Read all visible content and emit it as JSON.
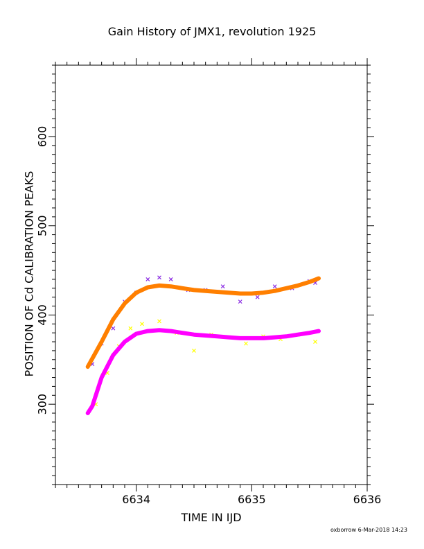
{
  "footer": "oxborrow  6-Mar-2018 14:23",
  "chart_data": {
    "type": "scatter",
    "title": "Gain History of JMX1, revolution 1925",
    "xlabel": "TIME IN IJD",
    "ylabel": "POSITION OF Cd CALIBRATION PEAKS",
    "xlim": [
      6633.3,
      6636.0
    ],
    "ylim": [
      210,
      680
    ],
    "x_ticks": [
      "6634",
      "6635",
      "6636"
    ],
    "y_ticks": [
      "300",
      "400",
      "500",
      "600"
    ],
    "grid": false,
    "legend": "none",
    "series": [
      {
        "marker": "x",
        "color": "#8a2be2",
        "x": [
          6633.62,
          6633.7,
          6633.8,
          6633.9,
          6634.0,
          6634.1,
          6634.2,
          6634.3,
          6634.45,
          6634.6,
          6634.75,
          6634.9,
          6635.05,
          6635.2,
          6635.35,
          6635.5,
          6635.55
        ],
        "y": [
          345,
          368,
          385,
          415,
          425,
          440,
          442,
          440,
          428,
          428,
          432,
          415,
          420,
          432,
          430,
          438,
          436
        ]
      },
      {
        "marker": "x",
        "color": "#ffff00",
        "x": [
          6633.65,
          6633.75,
          6633.85,
          6633.95,
          6634.05,
          6634.2,
          6634.35,
          6634.5,
          6634.65,
          6634.8,
          6634.95,
          6635.1,
          6635.25,
          6635.4,
          6635.55
        ],
        "y": [
          300,
          335,
          365,
          385,
          390,
          393,
          380,
          360,
          378,
          375,
          368,
          376,
          373,
          378,
          370
        ]
      },
      {
        "marker": "line",
        "color": "#ff7f00",
        "x": [
          6633.58,
          6633.7,
          6633.8,
          6633.9,
          6634.0,
          6634.1,
          6634.2,
          6634.3,
          6634.4,
          6634.5,
          6634.6,
          6634.7,
          6634.8,
          6634.9,
          6635.0,
          6635.1,
          6635.2,
          6635.3,
          6635.4,
          6635.5,
          6635.58
        ],
        "y": [
          342,
          370,
          395,
          413,
          425,
          431,
          433,
          432,
          430,
          428,
          427,
          426,
          425,
          424,
          424,
          425,
          427,
          430,
          433,
          437,
          441
        ]
      },
      {
        "marker": "line",
        "color": "#ff00ff",
        "x": [
          6633.58,
          6633.62,
          6633.7,
          6633.8,
          6633.9,
          6634.0,
          6634.1,
          6634.2,
          6634.3,
          6634.4,
          6634.5,
          6634.6,
          6634.7,
          6634.8,
          6634.9,
          6635.0,
          6635.1,
          6635.2,
          6635.3,
          6635.4,
          6635.5,
          6635.58
        ],
        "y": [
          290,
          298,
          330,
          355,
          370,
          379,
          382,
          383,
          382,
          380,
          378,
          377,
          376,
          375,
          374,
          374,
          374,
          375,
          376,
          378,
          380,
          382
        ]
      }
    ]
  }
}
